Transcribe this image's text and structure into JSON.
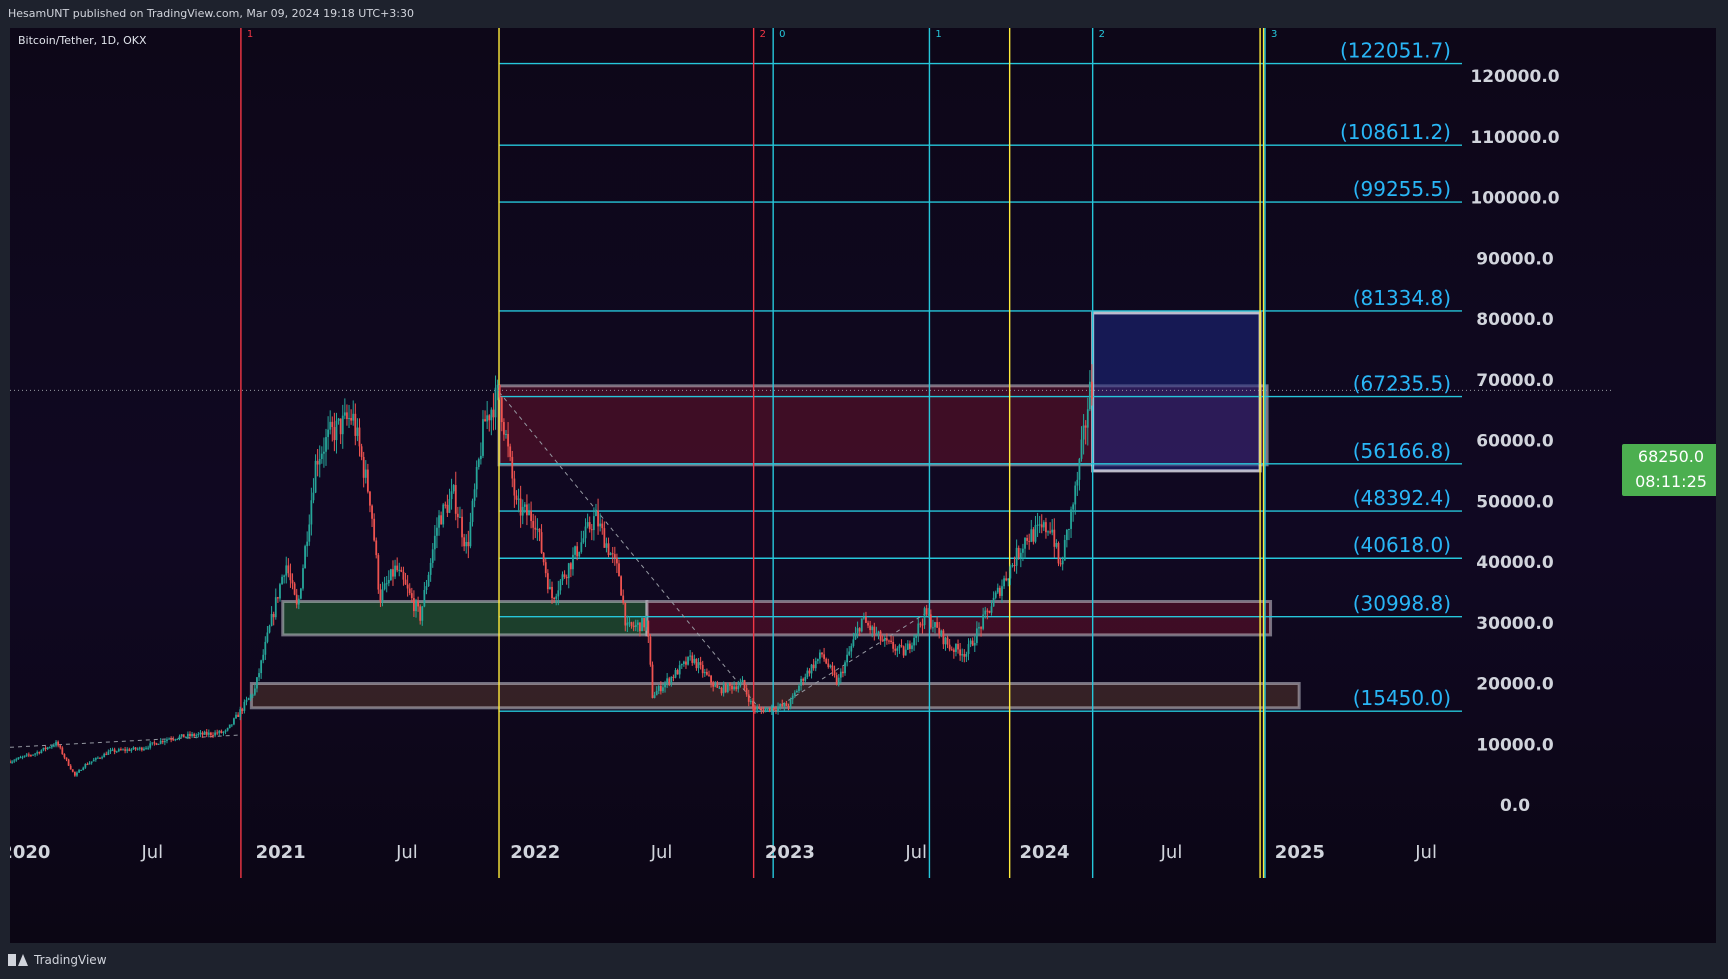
{
  "header": {
    "publisher_line": "HesamUNT published on TradingView.com, Mar 09, 2024 19:18 UTC+3:30"
  },
  "symbol": {
    "title": "Bitcoin/Tether, 1D, OKX"
  },
  "footer": {
    "brand": "TradingView"
  },
  "price_tag": {
    "price": "68250.0",
    "countdown": "08:11:25",
    "color": "#4caf50"
  },
  "colors": {
    "up_candle": "#26a69a",
    "down_candle": "#ef5350",
    "cyan_line": "#26c6da",
    "yellow_line": "#ffeb3b",
    "red_line": "#f23645",
    "fib_label": "#29b6f6"
  },
  "chart_data": {
    "type": "line",
    "title": "Bitcoin/Tether, 1D, OKX",
    "y_axis": {
      "ticks": [
        0,
        10000,
        20000,
        30000,
        40000,
        50000,
        60000,
        70000,
        80000,
        90000,
        100000,
        110000,
        120000
      ],
      "tick_labels": [
        "0.0",
        "10000.0",
        "20000.0",
        "30000.0",
        "40000.0",
        "50000.0",
        "60000.0",
        "70000.0",
        "80000.0",
        "90000.0",
        "100000.0",
        "110000.0",
        "120000.0"
      ],
      "range": [
        0,
        130000
      ]
    },
    "x_axis": {
      "range": [
        "2019-12-10",
        "2025-08-20"
      ],
      "ticks": [
        {
          "date": "2020-01-01",
          "label": "2020",
          "bold": true
        },
        {
          "date": "2020-07-01",
          "label": "Jul",
          "bold": false
        },
        {
          "date": "2021-01-01",
          "label": "2021",
          "bold": true
        },
        {
          "date": "2021-07-01",
          "label": "Jul",
          "bold": false
        },
        {
          "date": "2022-01-01",
          "label": "2022",
          "bold": true
        },
        {
          "date": "2022-07-01",
          "label": "Jul",
          "bold": false
        },
        {
          "date": "2023-01-01",
          "label": "2023",
          "bold": true
        },
        {
          "date": "2023-07-01",
          "label": "Jul",
          "bold": false
        },
        {
          "date": "2024-01-01",
          "label": "2024",
          "bold": true
        },
        {
          "date": "2024-07-01",
          "label": "Jul",
          "bold": false
        },
        {
          "date": "2025-01-01",
          "label": "2025",
          "bold": true
        },
        {
          "date": "2025-07-01",
          "label": "Jul",
          "bold": false
        }
      ]
    },
    "series": [
      {
        "name": "",
        "x": [
          "2019-12-10",
          "2020-01-15",
          "2020-02-15",
          "2020-03-12",
          "2020-03-25",
          "2020-05-01",
          "2020-06-15",
          "2020-07-25",
          "2020-09-01",
          "2020-10-15",
          "2020-11-25",
          "2021-01-08",
          "2021-01-25",
          "2021-02-21",
          "2021-03-13",
          "2021-04-14",
          "2021-05-10",
          "2021-05-23",
          "2021-06-15",
          "2021-07-20",
          "2021-08-15",
          "2021-09-06",
          "2021-09-25",
          "2021-10-20",
          "2021-11-10",
          "2021-12-05",
          "2022-01-01",
          "2022-01-24",
          "2022-03-28",
          "2022-05-01",
          "2022-05-12",
          "2022-06-10",
          "2022-06-18",
          "2022-07-01",
          "2022-08-13",
          "2022-09-20",
          "2022-10-25",
          "2022-11-09",
          "2022-11-21",
          "2022-12-31",
          "2023-01-20",
          "2023-02-16",
          "2023-03-10",
          "2023-04-14",
          "2023-05-15",
          "2023-06-15",
          "2023-07-14",
          "2023-08-18",
          "2023-09-11",
          "2023-10-24",
          "2023-12-05",
          "2024-01-11",
          "2024-01-23",
          "2024-02-15",
          "2024-02-28",
          "2024-03-05",
          "2024-03-09"
        ],
        "values": [
          7200,
          8500,
          10200,
          4800,
          6500,
          8800,
          9300,
          11000,
          11500,
          12000,
          19000,
          40000,
          32000,
          57000,
          61000,
          64000,
          50000,
          34000,
          39000,
          31000,
          47000,
          51000,
          42000,
          63000,
          68000,
          49000,
          47000,
          34000,
          47500,
          38000,
          29000,
          30000,
          18000,
          19500,
          24200,
          18900,
          20000,
          16000,
          15600,
          16500,
          21000,
          24800,
          20000,
          30500,
          26800,
          25000,
          31500,
          26000,
          25000,
          34500,
          44000,
          46000,
          38600,
          52000,
          62000,
          68000,
          68250
        ]
      }
    ],
    "fib_levels": [
      {
        "value": 122051.7,
        "label": "(122051.7)"
      },
      {
        "value": 108611.2,
        "label": "(108611.2)"
      },
      {
        "value": 99255.5,
        "label": "(99255.5)"
      },
      {
        "value": 81334.8,
        "label": "(81334.8)"
      },
      {
        "value": 67235.5,
        "label": "(67235.5)"
      },
      {
        "value": 56166.8,
        "label": "(56166.8)"
      },
      {
        "value": 48392.4,
        "label": "(48392.4)"
      },
      {
        "value": 40618.0,
        "label": "(40618.0)"
      },
      {
        "value": 30998.8,
        "label": "(30998.8)"
      },
      {
        "value": 15450.0,
        "label": "(15450.0)"
      }
    ],
    "vertical_lines": [
      {
        "date": "2020-11-05",
        "color": "red",
        "label": "1"
      },
      {
        "date": "2021-11-10",
        "color": "yellow",
        "label": ""
      },
      {
        "date": "2022-11-10",
        "color": "red",
        "label": "2"
      },
      {
        "date": "2022-12-08",
        "color": "cyan",
        "label": "0"
      },
      {
        "date": "2023-07-20",
        "color": "cyan",
        "label": "1"
      },
      {
        "date": "2023-11-12",
        "color": "yellow",
        "label": ""
      },
      {
        "date": "2024-03-10",
        "color": "cyan",
        "label": "2"
      },
      {
        "date": "2024-11-05",
        "color": "yellow",
        "label": ""
      },
      {
        "date": "2024-11-10",
        "color": "yellow",
        "label": ""
      },
      {
        "date": "2024-11-12",
        "color": "cyan",
        "label": "3"
      }
    ],
    "zones": [
      {
        "from": "2021-11-10",
        "to": "2024-11-15",
        "low": 56000,
        "high": 69000,
        "kind": "resistance-red",
        "clip_end": "2024-03-10"
      },
      {
        "from": "2021-01-04",
        "to": "2022-06-10",
        "low": 28000,
        "high": 33500,
        "kind": "support-green"
      },
      {
        "from": "2022-06-10",
        "to": "2024-11-20",
        "low": 28000,
        "high": 33500,
        "kind": "resistance-red"
      },
      {
        "from": "2020-11-20",
        "to": "2024-12-31",
        "low": 16000,
        "high": 20000,
        "kind": "brown"
      },
      {
        "from": "2024-03-10",
        "to": "2024-11-05",
        "low": 55000,
        "high": 81000,
        "kind": "target-blue"
      }
    ],
    "trendlines": [
      {
        "from": [
          "2021-11-10",
          68000
        ],
        "to": [
          "2022-11-21",
          15500
        ]
      },
      {
        "from": [
          "2022-12-20",
          16500
        ],
        "to": [
          "2023-07-14",
          31500
        ]
      },
      {
        "from": [
          "2019-12-10",
          9500
        ],
        "to": [
          "2020-11-01",
          11500
        ]
      }
    ],
    "last_price_line": 68250,
    "grid": false,
    "legend": "top-left"
  }
}
